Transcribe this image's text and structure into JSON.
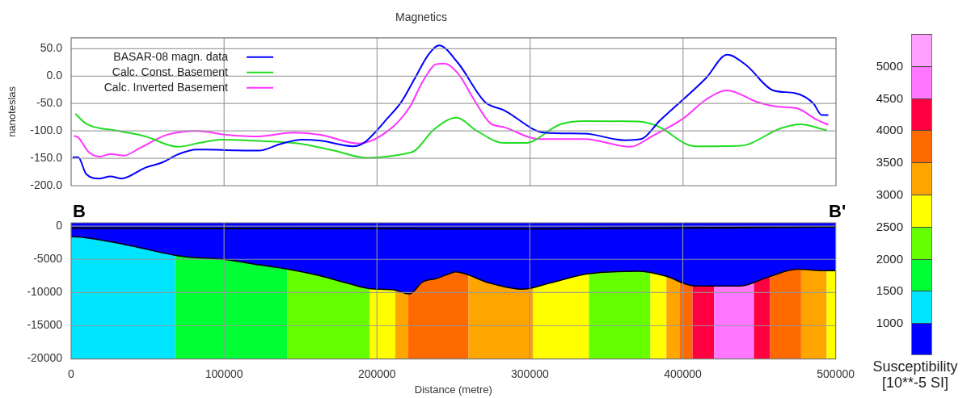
{
  "chart_data": [
    {
      "type": "line",
      "title": "Magnetics",
      "ylabel": "nanoteslas",
      "xlim": [
        0,
        500000
      ],
      "xticks": [
        0,
        100000,
        200000,
        300000,
        400000,
        500000
      ],
      "ylim": [
        -200,
        70
      ],
      "yticks": [
        {
          "value": 50,
          "label": "50.0"
        },
        {
          "value": 0,
          "label": "0.0"
        },
        {
          "value": -50,
          "label": "-50.0"
        },
        {
          "value": -100,
          "label": "-100.0"
        },
        {
          "value": -150,
          "label": "-150.0"
        },
        {
          "value": -200,
          "label": "-200.0"
        }
      ],
      "tick_labels": "y",
      "grid": true,
      "legend": "top left",
      "line_style": "solid",
      "marker": "none",
      "series": [
        {
          "name": "BASAR-08 magn. data",
          "color": "#0000ff",
          "x": [
            1000,
            4600,
            9900,
            18700,
            25700,
            32800,
            48600,
            59200,
            69700,
            82000,
            101400,
            122600,
            136700,
            150700,
            163100,
            184200,
            191200,
            207100,
            215900,
            224700,
            233500,
            240500,
            252900,
            270500,
            282800,
            309200,
            335600,
            362000,
            372600,
            384900,
            414900,
            428900,
            441300,
            458900,
            473000,
            485300,
            490600,
            495000
          ],
          "values": [
            -148,
            -148,
            -179,
            -187,
            -183,
            -187,
            -167,
            -158,
            -143,
            -134,
            -135,
            -136,
            -124,
            -116,
            -118,
            -128,
            -122,
            -76,
            -47,
            -4,
            39,
            56,
            24,
            -47,
            -62,
            -103,
            -105,
            -117,
            -115,
            -81,
            -4,
            39,
            20,
            -26,
            -31,
            -50,
            -71,
            -71
          ]
        },
        {
          "name": "Calc. Const. Basement",
          "color": "#22dd22",
          "x": [
            2800,
            9900,
            31000,
            48600,
            69700,
            83800,
            97900,
            119000,
            149000,
            171900,
            193000,
            201800,
            219400,
            224700,
            237000,
            252000,
            265200,
            282800,
            296900,
            319800,
            335600,
            370800,
            383100,
            407800,
            437700,
            464200,
            476500,
            494100
          ],
          "values": [
            -69,
            -87,
            -100,
            -110,
            -129,
            -122,
            -116,
            -118,
            -123,
            -136,
            -149,
            -148,
            -141,
            -136,
            -98,
            -76,
            -100,
            -122,
            -122,
            -88,
            -82,
            -83,
            -91,
            -128,
            -127,
            -95,
            -88,
            -99
          ]
        },
        {
          "name": "Calc. Inverted Basement",
          "color": "#ff33ff",
          "x": [
            1900,
            4600,
            11600,
            18700,
            25700,
            34500,
            45100,
            62700,
            82000,
            101400,
            122600,
            145400,
            163100,
            187700,
            207100,
            221200,
            230000,
            238800,
            244100,
            252900,
            263400,
            274000,
            282800,
            305700,
            335600,
            365600,
            379600,
            400800,
            414900,
            428900,
            448300,
            462400,
            474700,
            487000,
            495000
          ],
          "values": [
            -109,
            -112,
            -139,
            -147,
            -142,
            -145,
            -131,
            -107,
            -100,
            -107,
            -110,
            -103,
            -107,
            -123,
            -100,
            -57,
            -9,
            22,
            23,
            5,
            -43,
            -86,
            -93,
            -115,
            -115,
            -129,
            -110,
            -76,
            -43,
            -26,
            -47,
            -56,
            -59,
            -79,
            -89
          ]
        }
      ]
    },
    {
      "type": "area",
      "xlabel": "Distance (metre)",
      "xlim": [
        0,
        500000
      ],
      "xticks": [
        0,
        100000,
        200000,
        300000,
        400000,
        500000
      ],
      "ylim": [
        -20000,
        500
      ],
      "yticks": [
        0,
        -5000,
        -10000,
        -15000,
        -20000
      ],
      "grid": true,
      "annotations": [
        "B",
        "B'"
      ],
      "clabel": "Susceptibility [10**-5 SI]",
      "clim": [
        500,
        5500
      ],
      "cticks": [
        1000,
        1500,
        2000,
        2500,
        3000,
        3500,
        4000,
        4500,
        5000
      ],
      "colors": [
        "#0000ff",
        "#00e5ff",
        "#00ff33",
        "#66ff00",
        "#ffff00",
        "#ffa500",
        "#ff6a00",
        "#ff0040",
        "#ff77ff",
        "#ffa0ff"
      ],
      "series": [
        {
          "type": "area",
          "color": "#0000ff",
          "x": [
            0,
            1900,
            16900,
            39800,
            67900,
            78500,
            99700,
            119000,
            141900,
            163100,
            180700,
            194800,
            210600,
            221200,
            230000,
            238800,
            249300,
            251100,
            274000,
            295100,
            312700,
            337400,
            370800,
            388400,
            407800,
            437700,
            455400,
            474700,
            494100,
            500000
          ],
          "values": [
            -1600,
            -1600,
            -2000,
            -3000,
            -4400,
            -4700,
            -5000,
            -5700,
            -6500,
            -7500,
            -8600,
            -9400,
            -9600,
            -10200,
            -8400,
            -7900,
            -7000,
            -6900,
            -8600,
            -9500,
            -8600,
            -7200,
            -6800,
            -7500,
            -9000,
            -9000,
            -7700,
            -6500,
            -6700,
            -6700
          ]
        },
        {
          "type": "line",
          "color": "#000000",
          "x": [
            0,
            300000,
            500000
          ],
          "values": [
            -300,
            -400,
            -100
          ]
        }
      ],
      "bands": [
        {
          "axis": "x",
          "from": 0,
          "to": 68000,
          "color": "#00e5ff"
        },
        {
          "axis": "x",
          "from": 68000,
          "to": 141400,
          "color": "#00ff33"
        },
        {
          "axis": "x",
          "from": 141400,
          "to": 195100,
          "color": "#66ff00"
        },
        {
          "axis": "x",
          "from": 195100,
          "to": 212000,
          "color": "#ffff00"
        },
        {
          "axis": "x",
          "from": 212000,
          "to": 220300,
          "color": "#ffa500"
        },
        {
          "axis": "x",
          "from": 220300,
          "to": 259900,
          "color": "#ff6a00"
        },
        {
          "axis": "x",
          "from": 259900,
          "to": 302200,
          "color": "#ffa500"
        },
        {
          "axis": "x",
          "from": 302200,
          "to": 338600,
          "color": "#ffff00"
        },
        {
          "axis": "x",
          "from": 338600,
          "to": 378800,
          "color": "#66ff00"
        },
        {
          "axis": "x",
          "from": 378800,
          "to": 389300,
          "color": "#ffff00"
        },
        {
          "axis": "x",
          "from": 389300,
          "to": 398100,
          "color": "#ffa500"
        },
        {
          "axis": "x",
          "from": 398100,
          "to": 406400,
          "color": "#ff6a00"
        },
        {
          "axis": "x",
          "from": 406400,
          "to": 420500,
          "color": "#ff0040"
        },
        {
          "axis": "x",
          "from": 420500,
          "to": 446500,
          "color": "#ff77ff"
        },
        {
          "axis": "x",
          "from": 446500,
          "to": 457100,
          "color": "#ff0040"
        },
        {
          "axis": "x",
          "from": 457100,
          "to": 477400,
          "color": "#ff6a00"
        },
        {
          "axis": "x",
          "from": 477400,
          "to": 494100,
          "color": "#ffa500"
        },
        {
          "axis": "x",
          "from": 494100,
          "to": 500000,
          "color": "#ffff00"
        }
      ]
    }
  ]
}
